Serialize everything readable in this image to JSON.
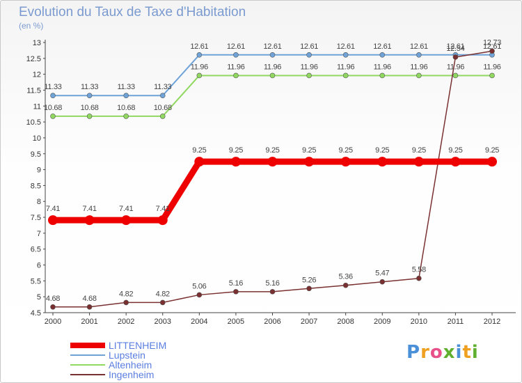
{
  "title": "Evolution du Taux de Taxe d'Habitation",
  "subtitle": "(en %)",
  "logo": {
    "text": "Proxiti",
    "letters": [
      "P",
      "r",
      "o",
      "x",
      "i",
      "t",
      "i"
    ],
    "colors": [
      "#4a90d9",
      "#f0a020",
      "#e8508a",
      "#60b030",
      "#4a90d9",
      "#f0a020",
      "#60b030"
    ]
  },
  "chart_data": {
    "type": "line",
    "title": "Evolution du Taux de Taxe d'Habitation",
    "ylabel": "(en %)",
    "x": [
      "2000",
      "2001",
      "2002",
      "2003",
      "2004",
      "2005",
      "2006",
      "2007",
      "2008",
      "2009",
      "2010",
      "2011",
      "2012"
    ],
    "ylim": [
      4.5,
      13
    ],
    "yticks": [
      "4.5",
      "5",
      "5.5",
      "6",
      "6.5",
      "7",
      "7.5",
      "8",
      "8.5",
      "9",
      "9.5",
      "10",
      "10.5",
      "11",
      "11.5",
      "12",
      "12.5",
      "13"
    ],
    "grid": false,
    "legend_position": "bottom-left",
    "series": [
      {
        "name": "LITTENHEIM",
        "color": "#ee0000",
        "values": [
          7.41,
          7.41,
          7.41,
          7.41,
          9.25,
          9.25,
          9.25,
          9.25,
          9.25,
          9.25,
          9.25,
          9.25,
          9.25
        ],
        "labels": [
          "7.41",
          "7.41",
          "7.41",
          "7.41",
          "9.25",
          "9.25",
          "9.25",
          "9.25",
          "9.25",
          "9.25",
          "9.25",
          "9.25",
          "9.25"
        ]
      },
      {
        "name": "Lupstein",
        "color": "#6fa3d8",
        "values": [
          11.33,
          11.33,
          11.33,
          11.33,
          12.61,
          12.61,
          12.61,
          12.61,
          12.61,
          12.61,
          12.61,
          12.61,
          12.61
        ],
        "labels": [
          "11.33",
          "11.33",
          "11.33",
          "11.33",
          "12.61",
          "12.61",
          "12.61",
          "12.61",
          "12.61",
          "12.61",
          "12.61",
          "12.61",
          "12.61"
        ]
      },
      {
        "name": "Altenheim",
        "color": "#90d860",
        "values": [
          10.68,
          10.68,
          10.68,
          10.68,
          11.96,
          11.96,
          11.96,
          11.96,
          11.96,
          11.96,
          11.96,
          11.96,
          11.96
        ],
        "labels": [
          "10.68",
          "10.68",
          "10.68",
          "10.68",
          "11.96",
          "11.96",
          "11.96",
          "11.96",
          "11.96",
          "11.96",
          "11.96",
          "11.96",
          "11.96"
        ]
      },
      {
        "name": "Ingenheim",
        "color": "#7a3030",
        "values": [
          4.68,
          4.68,
          4.82,
          4.82,
          5.06,
          5.16,
          5.16,
          5.26,
          5.36,
          5.47,
          5.58,
          12.54,
          12.73
        ],
        "labels": [
          "4.68",
          "4.68",
          "4.82",
          "4.82",
          "5.06",
          "5.16",
          "5.16",
          "5.26",
          "5.36",
          "5.47",
          "5.58",
          "12.54",
          "12.73"
        ]
      }
    ]
  }
}
